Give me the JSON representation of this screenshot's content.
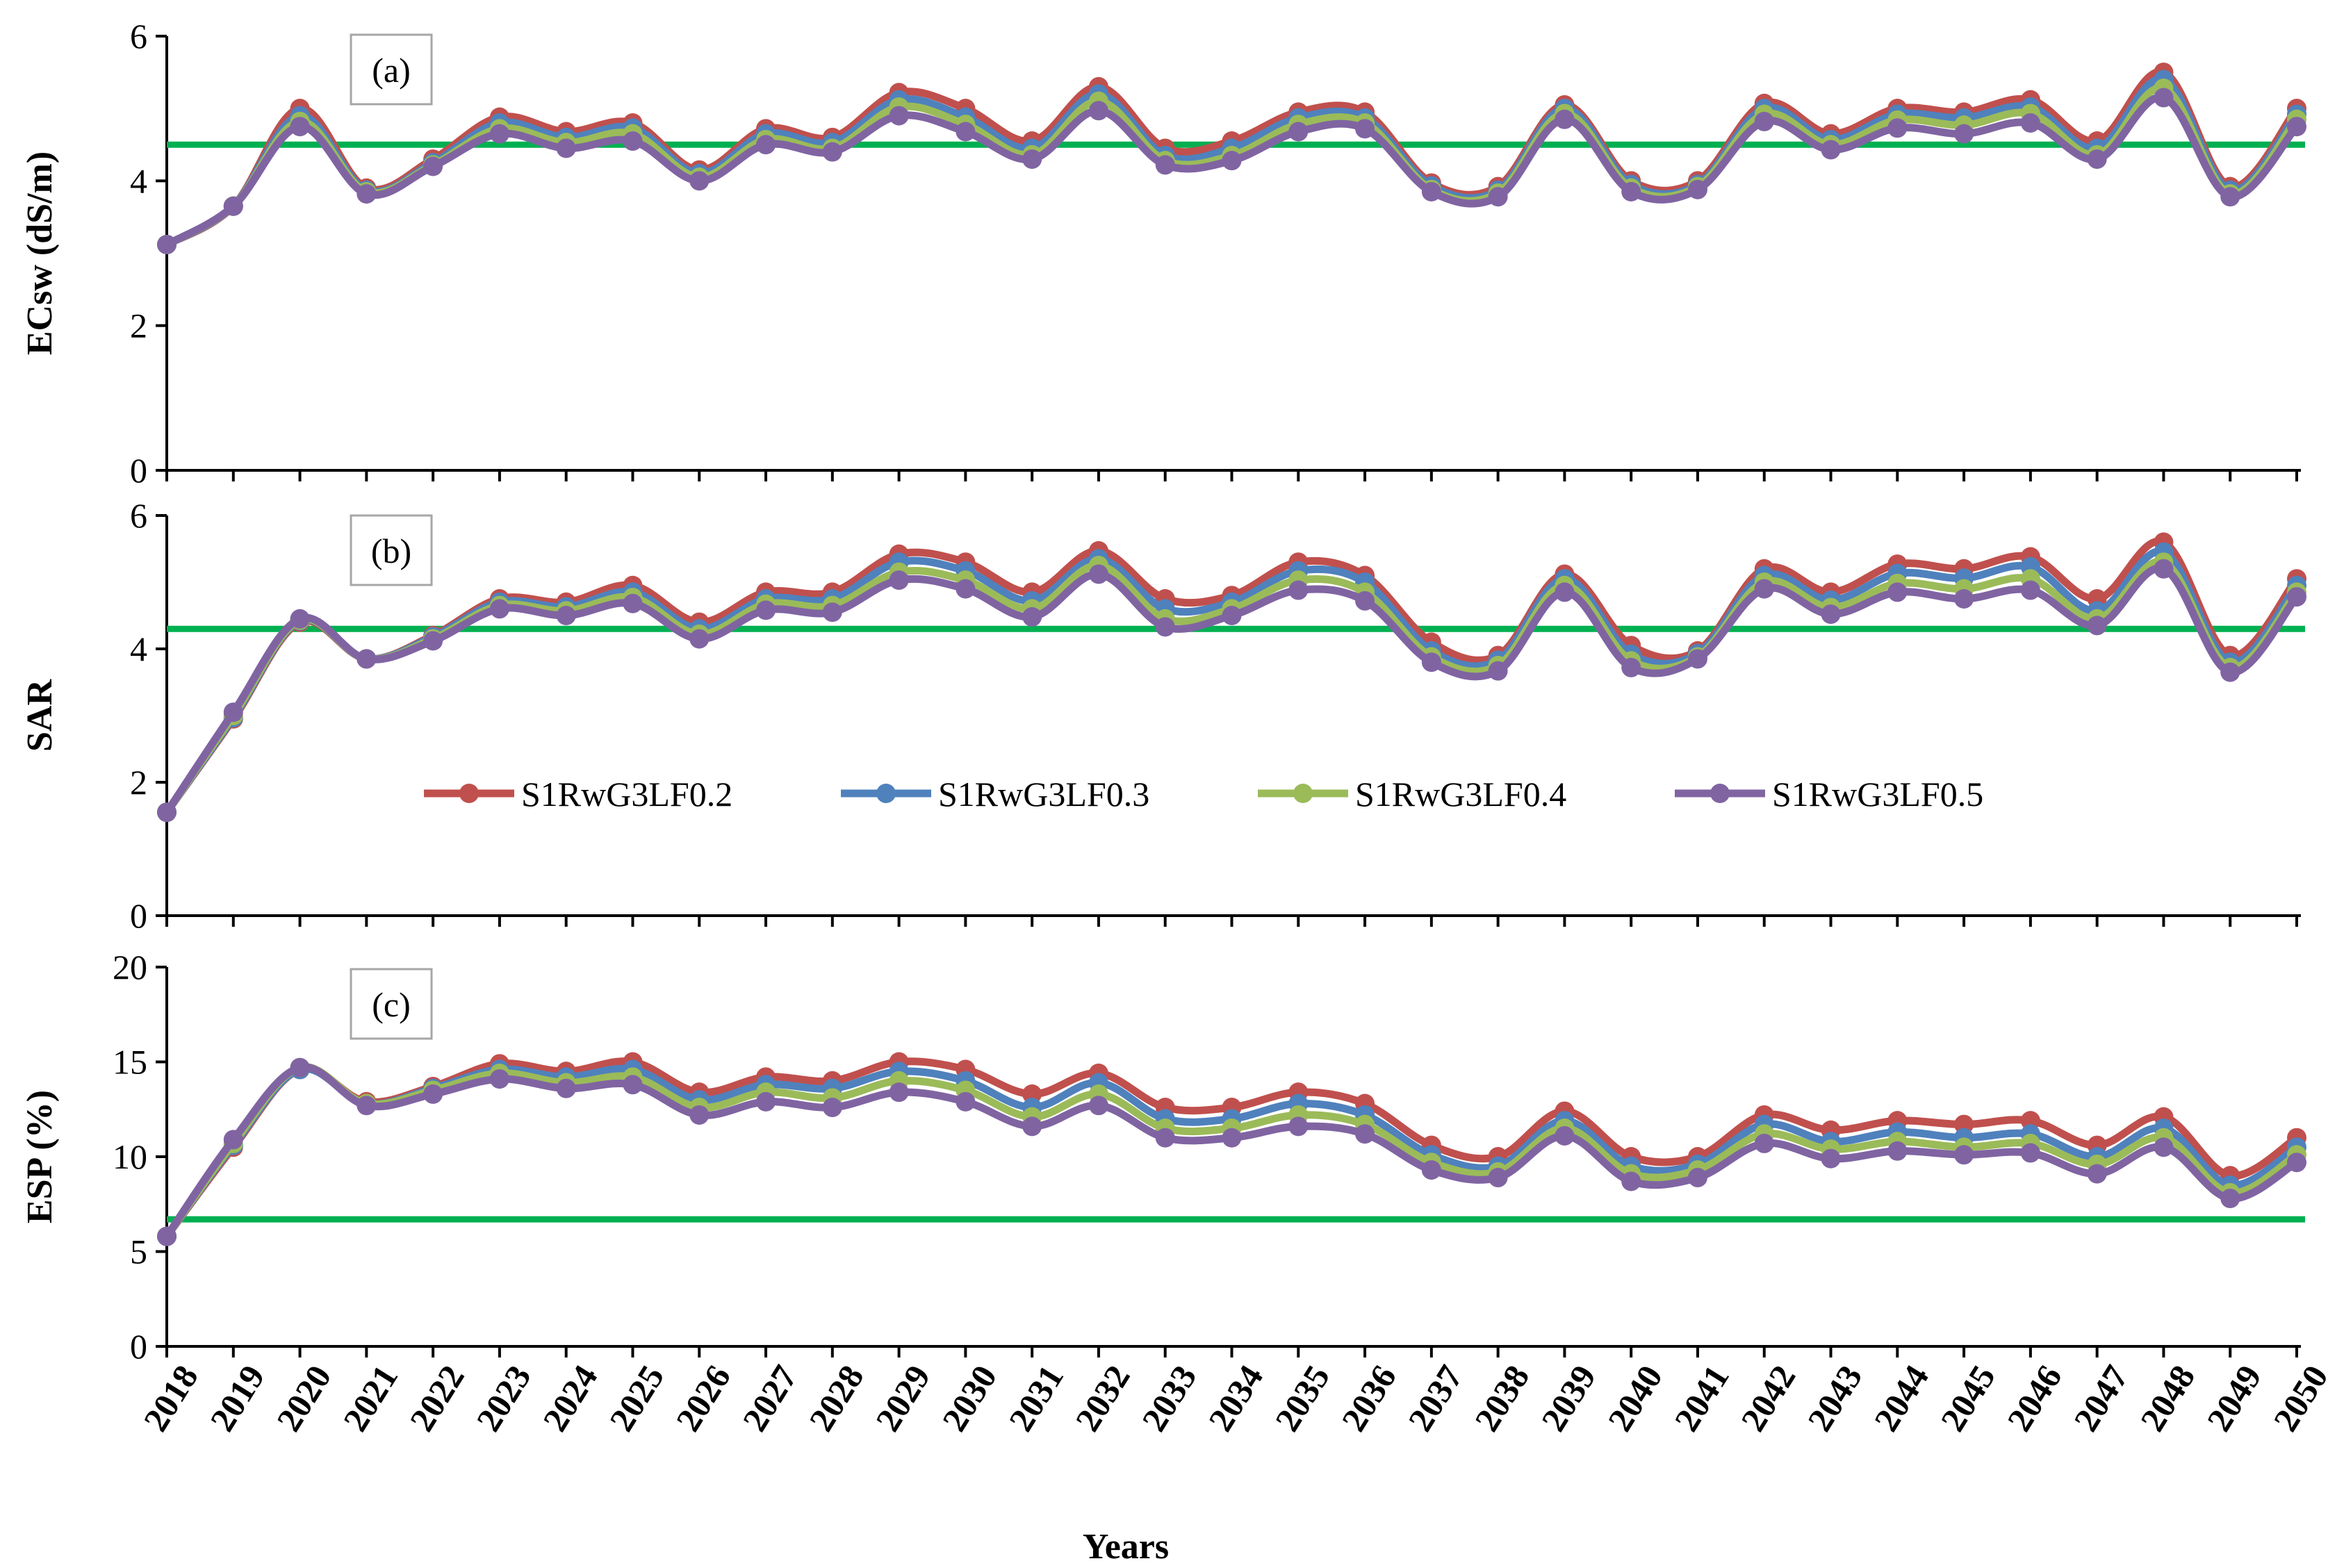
{
  "chart_data": {
    "type": "line",
    "xlabel": "Years",
    "x": [
      "2018",
      "2019",
      "2020",
      "2021",
      "2022",
      "2023",
      "2024",
      "2025",
      "2026",
      "2027",
      "2028",
      "2029",
      "2030",
      "2031",
      "2032",
      "2033",
      "2034",
      "2035",
      "2036",
      "2037",
      "2038",
      "2039",
      "2040",
      "2041",
      "2042",
      "2043",
      "2044",
      "2045",
      "2046",
      "2047",
      "2048",
      "2049",
      "2050"
    ],
    "legend": {
      "placement": "middle",
      "entries": [
        "S1RwG3LF0.2",
        "S1RwG3LF0.3",
        "S1RwG3LF0.4",
        "S1RwG3LF0.5"
      ]
    },
    "colors": {
      "S1RwG3LF0.2": "#c0504d",
      "S1RwG3LF0.3": "#4f81bd",
      "S1RwG3LF0.4": "#9bbb59",
      "S1RwG3LF0.5": "#8064a2",
      "threshold": "#00b050"
    },
    "panels": [
      {
        "label": "(a)",
        "ylabel": "ECsw (dS/m)",
        "ylim": [
          0,
          6
        ],
        "yticks": [
          0,
          2,
          4,
          6
        ],
        "threshold": 4.5,
        "series": [
          {
            "name": "S1RwG3LF0.2",
            "values": [
              3.12,
              3.65,
              5.0,
              3.9,
              4.3,
              4.88,
              4.68,
              4.8,
              4.15,
              4.72,
              4.6,
              5.22,
              5.0,
              4.55,
              5.3,
              4.45,
              4.55,
              4.95,
              4.95,
              3.97,
              3.92,
              5.05,
              4.0,
              4.0,
              5.07,
              4.65,
              5.0,
              4.95,
              5.12,
              4.55,
              5.5,
              3.92,
              5.0
            ]
          },
          {
            "name": "S1RwG3LF0.3",
            "values": [
              3.12,
              3.65,
              4.9,
              3.87,
              4.25,
              4.8,
              4.6,
              4.73,
              4.1,
              4.65,
              4.53,
              5.12,
              4.88,
              4.45,
              5.2,
              4.35,
              4.45,
              4.87,
              4.87,
              3.93,
              3.87,
              5.0,
              3.95,
              3.95,
              5.0,
              4.57,
              4.92,
              4.87,
              5.02,
              4.45,
              5.4,
              3.87,
              4.92
            ]
          },
          {
            "name": "S1RwG3LF0.4",
            "values": [
              3.12,
              3.65,
              4.82,
              3.85,
              4.22,
              4.72,
              4.53,
              4.65,
              4.05,
              4.57,
              4.45,
              5.02,
              4.78,
              4.36,
              5.1,
              4.28,
              4.35,
              4.78,
              4.8,
              3.88,
              3.83,
              4.93,
              3.9,
              3.92,
              4.92,
              4.5,
              4.84,
              4.77,
              4.93,
              4.36,
              5.28,
              3.82,
              4.85
            ]
          },
          {
            "name": "S1RwG3LF0.5",
            "values": [
              3.12,
              3.65,
              4.75,
              3.82,
              4.2,
              4.65,
              4.45,
              4.55,
              4.0,
              4.5,
              4.4,
              4.9,
              4.68,
              4.3,
              4.97,
              4.22,
              4.28,
              4.68,
              4.72,
              3.85,
              3.78,
              4.85,
              3.85,
              3.88,
              4.82,
              4.43,
              4.73,
              4.65,
              4.8,
              4.3,
              5.15,
              3.78,
              4.75
            ]
          }
        ]
      },
      {
        "label": "(b)",
        "ylabel": "SAR",
        "ylim": [
          0,
          6
        ],
        "yticks": [
          0,
          2,
          4,
          6
        ],
        "threshold": 4.3,
        "series": [
          {
            "name": "S1RwG3LF0.2",
            "values": [
              1.55,
              2.95,
              4.4,
              3.85,
              4.2,
              4.75,
              4.7,
              4.95,
              4.4,
              4.85,
              4.85,
              5.42,
              5.3,
              4.85,
              5.47,
              4.75,
              4.8,
              5.3,
              5.1,
              4.1,
              3.9,
              5.12,
              4.05,
              3.97,
              5.2,
              4.85,
              5.27,
              5.2,
              5.38,
              4.75,
              5.6,
              3.9,
              5.05
            ]
          },
          {
            "name": "S1RwG3LF0.3",
            "values": [
              1.55,
              2.97,
              4.42,
              3.85,
              4.18,
              4.7,
              4.63,
              4.85,
              4.3,
              4.75,
              4.75,
              5.3,
              5.17,
              4.72,
              5.35,
              4.6,
              4.7,
              5.17,
              5.0,
              3.97,
              3.83,
              5.05,
              3.92,
              3.93,
              5.1,
              4.73,
              5.13,
              5.06,
              5.23,
              4.57,
              5.45,
              3.8,
              4.95
            ]
          },
          {
            "name": "S1RwG3LF0.4",
            "values": [
              1.55,
              3.0,
              4.43,
              3.85,
              4.15,
              4.65,
              4.57,
              4.77,
              4.22,
              4.67,
              4.65,
              5.15,
              5.03,
              4.6,
              5.25,
              4.45,
              4.6,
              5.03,
              4.85,
              3.88,
              3.75,
              4.95,
              3.82,
              3.88,
              5.0,
              4.62,
              4.98,
              4.9,
              5.05,
              4.45,
              5.3,
              3.72,
              4.85
            ]
          },
          {
            "name": "S1RwG3LF0.5",
            "values": [
              1.55,
              3.05,
              4.45,
              3.85,
              4.12,
              4.6,
              4.5,
              4.68,
              4.15,
              4.58,
              4.55,
              5.03,
              4.9,
              4.48,
              5.12,
              4.33,
              4.5,
              4.88,
              4.72,
              3.8,
              3.67,
              4.85,
              3.72,
              3.85,
              4.9,
              4.52,
              4.85,
              4.75,
              4.88,
              4.35,
              5.2,
              3.65,
              4.78
            ]
          }
        ]
      },
      {
        "label": "(c)",
        "ylabel": "ESP (%)",
        "ylim": [
          0,
          20
        ],
        "yticks": [
          0,
          5,
          10,
          15,
          20
        ],
        "threshold": 6.7,
        "series": [
          {
            "name": "S1RwG3LF0.2",
            "values": [
              5.8,
              10.5,
              14.6,
              12.9,
              13.7,
              14.9,
              14.5,
              15.0,
              13.4,
              14.2,
              14.0,
              15.0,
              14.6,
              13.3,
              14.4,
              12.6,
              12.6,
              13.4,
              12.8,
              10.6,
              10.0,
              12.4,
              10.0,
              10.0,
              12.2,
              11.4,
              11.9,
              11.7,
              11.9,
              10.6,
              12.1,
              9.0,
              11.0
            ]
          },
          {
            "name": "S1RwG3LF0.3",
            "values": [
              5.8,
              10.6,
              14.6,
              12.8,
              13.6,
              14.6,
              14.2,
              14.6,
              13.0,
              13.8,
              13.6,
              14.5,
              14.0,
              12.6,
              13.9,
              12.0,
              12.0,
              12.8,
              12.2,
              10.1,
              9.5,
              11.9,
              9.5,
              9.6,
              11.7,
              10.8,
              11.3,
              11.0,
              11.2,
              10.0,
              11.5,
              8.5,
              10.5
            ]
          },
          {
            "name": "S1RwG3LF0.4",
            "values": [
              5.8,
              10.7,
              14.7,
              12.8,
              13.5,
              14.4,
              13.9,
              14.2,
              12.6,
              13.4,
              13.1,
              14.0,
              13.5,
              12.1,
              13.3,
              11.5,
              11.5,
              12.2,
              11.7,
              9.7,
              9.2,
              11.5,
              9.1,
              9.3,
              11.2,
              10.4,
              10.8,
              10.5,
              10.7,
              9.6,
              11.0,
              8.1,
              10.1
            ]
          },
          {
            "name": "S1RwG3LF0.5",
            "values": [
              5.8,
              10.9,
              14.7,
              12.7,
              13.3,
              14.1,
              13.6,
              13.8,
              12.2,
              12.9,
              12.6,
              13.4,
              12.9,
              11.6,
              12.7,
              11.0,
              11.0,
              11.6,
              11.2,
              9.3,
              8.9,
              11.1,
              8.7,
              8.9,
              10.7,
              9.9,
              10.3,
              10.1,
              10.2,
              9.1,
              10.5,
              7.8,
              9.7
            ]
          }
        ]
      }
    ]
  }
}
